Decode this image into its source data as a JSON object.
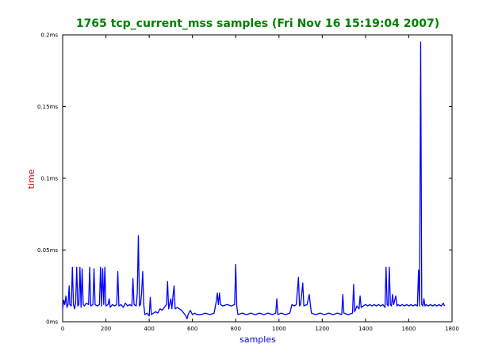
{
  "chart_data": {
    "type": "line",
    "title": "1765 tcp_current_mss samples (Fri Nov 16 15:19:04 2007)",
    "xlabel": "samples",
    "ylabel": "time",
    "xlim": [
      0,
      1800
    ],
    "ylim": [
      0,
      0.2
    ],
    "x_ticks": [
      {
        "value": 0,
        "label": "0"
      },
      {
        "value": 200,
        "label": "200"
      },
      {
        "value": 400,
        "label": "400"
      },
      {
        "value": 600,
        "label": "600"
      },
      {
        "value": 800,
        "label": "800"
      },
      {
        "value": 1000,
        "label": "1000"
      },
      {
        "value": 1200,
        "label": "1200"
      },
      {
        "value": 1400,
        "label": "1400"
      },
      {
        "value": 1600,
        "label": "1600"
      },
      {
        "value": 1800,
        "label": "1800"
      }
    ],
    "y_ticks": [
      {
        "value": 0,
        "label": "0ms"
      },
      {
        "value": 0.05,
        "label": "0.05ms"
      },
      {
        "value": 0.1,
        "label": "0.1ms"
      },
      {
        "value": 0.15,
        "label": "0.15ms"
      },
      {
        "value": 0.2,
        "label": "0.2ms"
      }
    ],
    "grid": false,
    "colors": {
      "title": "#008000",
      "xlabel": "#0000cc",
      "ylabel": "#cc0000",
      "line": "#0000ff",
      "axes": "#000000"
    },
    "series": [
      {
        "points": [
          [
            0,
            0.009
          ],
          [
            5,
            0.015
          ],
          [
            10,
            0.012
          ],
          [
            15,
            0.018
          ],
          [
            20,
            0.01
          ],
          [
            25,
            0.012
          ],
          [
            30,
            0.025
          ],
          [
            33,
            0.012
          ],
          [
            40,
            0.011
          ],
          [
            45,
            0.038
          ],
          [
            50,
            0.012
          ],
          [
            55,
            0.009
          ],
          [
            60,
            0.013
          ],
          [
            65,
            0.038
          ],
          [
            70,
            0.011
          ],
          [
            75,
            0.012
          ],
          [
            80,
            0.038
          ],
          [
            85,
            0.01
          ],
          [
            90,
            0.037
          ],
          [
            95,
            0.012
          ],
          [
            100,
            0.011
          ],
          [
            110,
            0.013
          ],
          [
            120,
            0.012
          ],
          [
            125,
            0.038
          ],
          [
            130,
            0.011
          ],
          [
            140,
            0.012
          ],
          [
            145,
            0.037
          ],
          [
            150,
            0.012
          ],
          [
            160,
            0.011
          ],
          [
            170,
            0.012
          ],
          [
            175,
            0.038
          ],
          [
            180,
            0.011
          ],
          [
            185,
            0.037
          ],
          [
            190,
            0.012
          ],
          [
            195,
            0.038
          ],
          [
            200,
            0.011
          ],
          [
            210,
            0.012
          ],
          [
            215,
            0.016
          ],
          [
            220,
            0.01
          ],
          [
            230,
            0.012
          ],
          [
            240,
            0.011
          ],
          [
            250,
            0.012
          ],
          [
            255,
            0.035
          ],
          [
            260,
            0.011
          ],
          [
            270,
            0.012
          ],
          [
            280,
            0.01
          ],
          [
            290,
            0.013
          ],
          [
            300,
            0.011
          ],
          [
            310,
            0.012
          ],
          [
            320,
            0.011
          ],
          [
            325,
            0.03
          ],
          [
            330,
            0.012
          ],
          [
            340,
            0.011
          ],
          [
            345,
            0.02
          ],
          [
            350,
            0.06
          ],
          [
            355,
            0.011
          ],
          [
            360,
            0.012
          ],
          [
            365,
            0.02
          ],
          [
            370,
            0.035
          ],
          [
            375,
            0.012
          ],
          [
            380,
            0.005
          ],
          [
            390,
            0.006
          ],
          [
            400,
            0.004
          ],
          [
            405,
            0.017
          ],
          [
            410,
            0.005
          ],
          [
            420,
            0.006
          ],
          [
            430,
            0.007
          ],
          [
            440,
            0.006
          ],
          [
            450,
            0.009
          ],
          [
            460,
            0.008
          ],
          [
            470,
            0.01
          ],
          [
            480,
            0.012
          ],
          [
            485,
            0.028
          ],
          [
            490,
            0.009
          ],
          [
            500,
            0.016
          ],
          [
            505,
            0.009
          ],
          [
            510,
            0.018
          ],
          [
            515,
            0.025
          ],
          [
            520,
            0.009
          ],
          [
            530,
            0.01
          ],
          [
            540,
            0.009
          ],
          [
            550,
            0.008
          ],
          [
            560,
            0.006
          ],
          [
            570,
            0.004
          ],
          [
            575,
            0.002
          ],
          [
            580,
            0.005
          ],
          [
            590,
            0.008
          ],
          [
            600,
            0.005
          ],
          [
            610,
            0.006
          ],
          [
            620,
            0.005
          ],
          [
            640,
            0.005
          ],
          [
            660,
            0.006
          ],
          [
            680,
            0.005
          ],
          [
            700,
            0.006
          ],
          [
            710,
            0.014
          ],
          [
            715,
            0.02
          ],
          [
            720,
            0.012
          ],
          [
            725,
            0.02
          ],
          [
            730,
            0.012
          ],
          [
            740,
            0.011
          ],
          [
            760,
            0.012
          ],
          [
            780,
            0.011
          ],
          [
            795,
            0.012
          ],
          [
            800,
            0.04
          ],
          [
            805,
            0.011
          ],
          [
            810,
            0.005
          ],
          [
            830,
            0.006
          ],
          [
            850,
            0.005
          ],
          [
            870,
            0.006
          ],
          [
            890,
            0.005
          ],
          [
            910,
            0.006
          ],
          [
            930,
            0.005
          ],
          [
            950,
            0.006
          ],
          [
            970,
            0.005
          ],
          [
            985,
            0.006
          ],
          [
            990,
            0.016
          ],
          [
            995,
            0.005
          ],
          [
            1010,
            0.006
          ],
          [
            1030,
            0.005
          ],
          [
            1050,
            0.006
          ],
          [
            1060,
            0.012
          ],
          [
            1070,
            0.011
          ],
          [
            1080,
            0.012
          ],
          [
            1090,
            0.031
          ],
          [
            1095,
            0.011
          ],
          [
            1100,
            0.012
          ],
          [
            1110,
            0.027
          ],
          [
            1115,
            0.011
          ],
          [
            1130,
            0.012
          ],
          [
            1140,
            0.019
          ],
          [
            1145,
            0.012
          ],
          [
            1150,
            0.006
          ],
          [
            1170,
            0.005
          ],
          [
            1190,
            0.006
          ],
          [
            1210,
            0.005
          ],
          [
            1230,
            0.006
          ],
          [
            1250,
            0.005
          ],
          [
            1270,
            0.006
          ],
          [
            1290,
            0.005
          ],
          [
            1295,
            0.019
          ],
          [
            1300,
            0.006
          ],
          [
            1320,
            0.005
          ],
          [
            1340,
            0.006
          ],
          [
            1345,
            0.026
          ],
          [
            1350,
            0.007
          ],
          [
            1360,
            0.011
          ],
          [
            1370,
            0.009
          ],
          [
            1375,
            0.018
          ],
          [
            1380,
            0.01
          ],
          [
            1390,
            0.011
          ],
          [
            1400,
            0.012
          ],
          [
            1410,
            0.011
          ],
          [
            1420,
            0.012
          ],
          [
            1430,
            0.011
          ],
          [
            1440,
            0.012
          ],
          [
            1450,
            0.011
          ],
          [
            1460,
            0.012
          ],
          [
            1470,
            0.011
          ],
          [
            1480,
            0.012
          ],
          [
            1490,
            0.01
          ],
          [
            1495,
            0.038
          ],
          [
            1500,
            0.012
          ],
          [
            1505,
            0.011
          ],
          [
            1510,
            0.038
          ],
          [
            1515,
            0.012
          ],
          [
            1520,
            0.011
          ],
          [
            1525,
            0.019
          ],
          [
            1530,
            0.012
          ],
          [
            1540,
            0.018
          ],
          [
            1545,
            0.011
          ],
          [
            1550,
            0.012
          ],
          [
            1560,
            0.011
          ],
          [
            1570,
            0.012
          ],
          [
            1580,
            0.011
          ],
          [
            1590,
            0.012
          ],
          [
            1600,
            0.011
          ],
          [
            1610,
            0.012
          ],
          [
            1620,
            0.011
          ],
          [
            1630,
            0.012
          ],
          [
            1640,
            0.011
          ],
          [
            1645,
            0.036
          ],
          [
            1650,
            0.011
          ],
          [
            1655,
            0.195
          ],
          [
            1660,
            0.012
          ],
          [
            1665,
            0.011
          ],
          [
            1670,
            0.016
          ],
          [
            1675,
            0.011
          ],
          [
            1680,
            0.012
          ],
          [
            1690,
            0.011
          ],
          [
            1700,
            0.012
          ],
          [
            1710,
            0.011
          ],
          [
            1720,
            0.012
          ],
          [
            1730,
            0.011
          ],
          [
            1740,
            0.012
          ],
          [
            1750,
            0.011
          ],
          [
            1760,
            0.013
          ],
          [
            1765,
            0.011
          ]
        ]
      }
    ]
  }
}
